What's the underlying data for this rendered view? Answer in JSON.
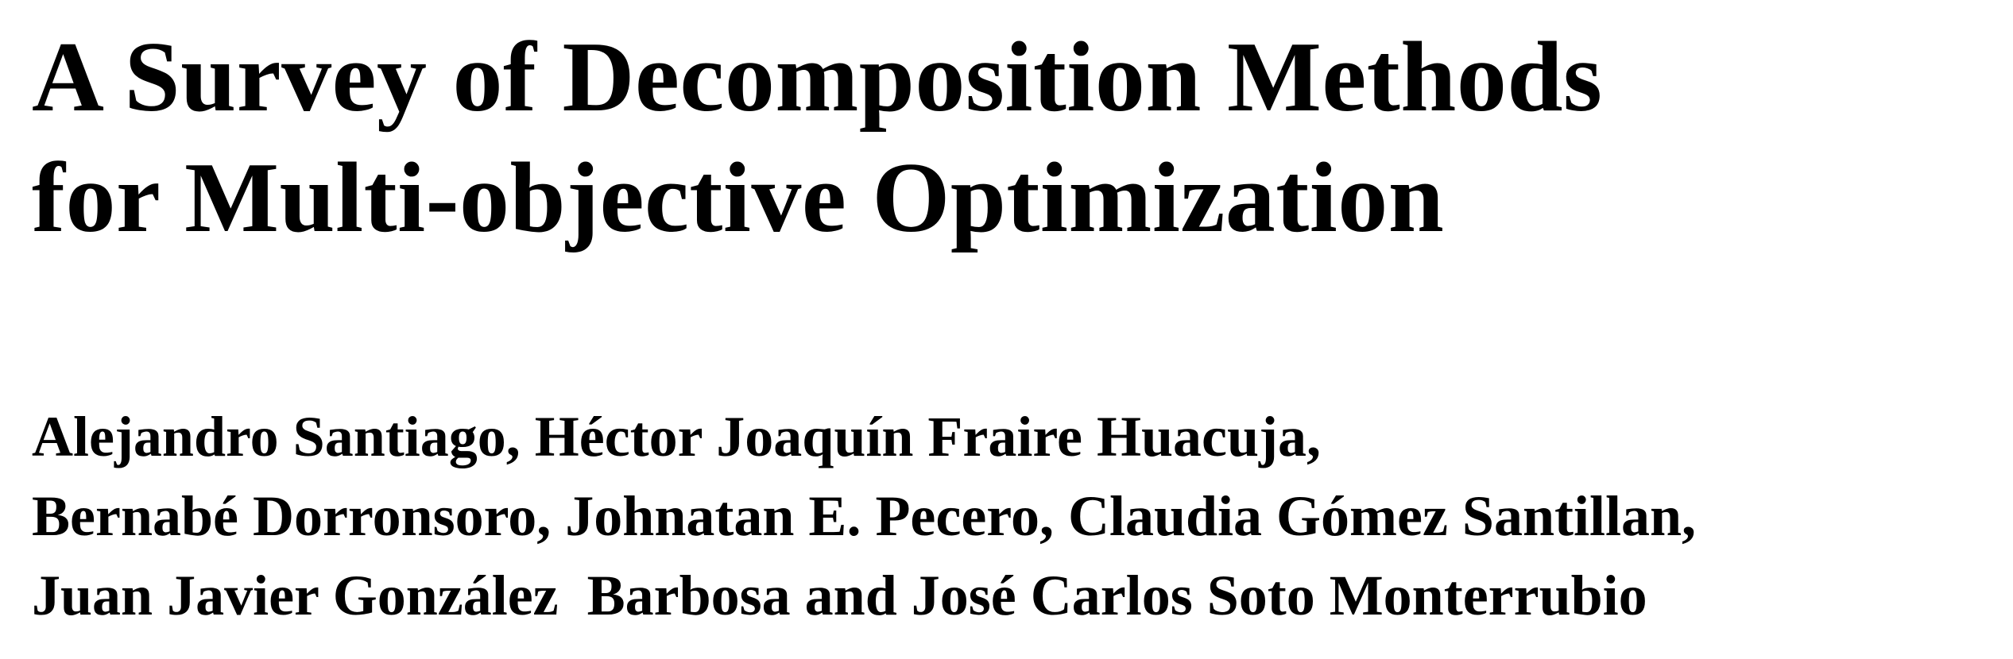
{
  "paper": {
    "title_lines": [
      "A Survey of Decomposition Methods",
      "for Multi-objective Optimization"
    ],
    "author_lines": [
      "Alejandro Santiago, Héctor Joaquín Fraire Huacuja,",
      "Bernabé Dorronsoro, Johnatan E. Pecero, Claudia Gómez Santillan,",
      "Juan Javier González  Barbosa and José Carlos Soto Monterrubio"
    ]
  }
}
